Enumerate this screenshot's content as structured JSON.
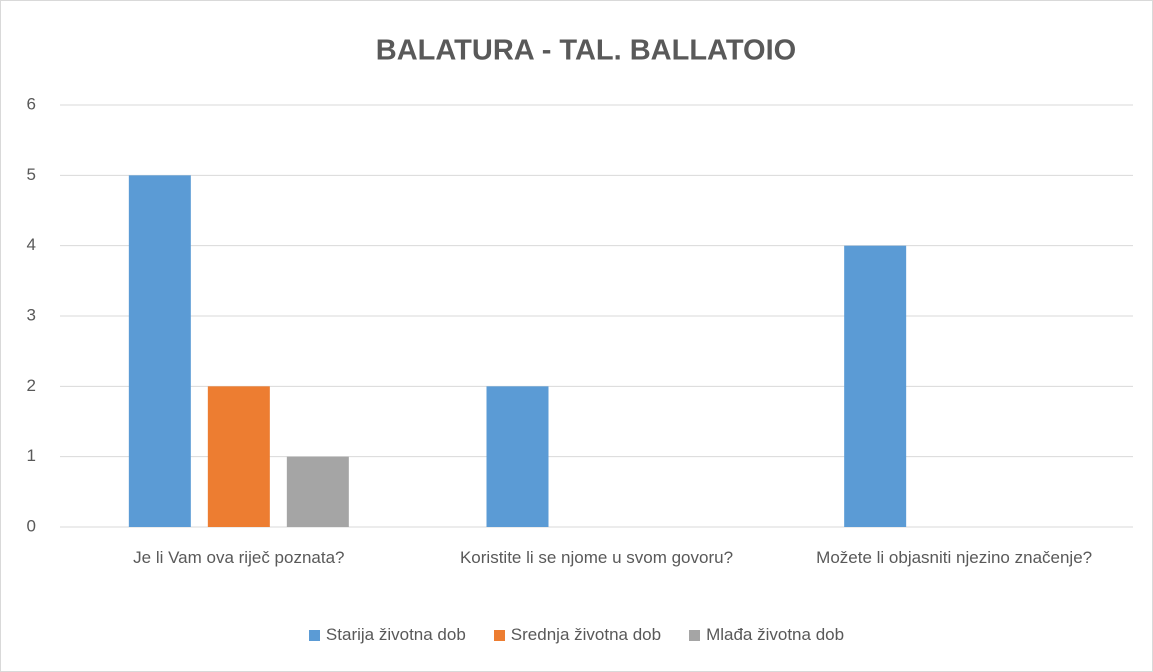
{
  "chart_data": {
    "type": "bar",
    "title": "BALATURA - TAL. BALLATOIO",
    "categories": [
      "Je li Vam ova riječ poznata?",
      "Koristite li se njome u svom govoru?",
      "Možete li objasniti njezino značenje?"
    ],
    "series": [
      {
        "name": "Starija životna dob",
        "color": "#5b9bd5",
        "values": [
          5,
          2,
          4
        ]
      },
      {
        "name": "Srednja životna dob",
        "color": "#ed7d31",
        "values": [
          2,
          0,
          0
        ]
      },
      {
        "name": "Mlađa životna dob",
        "color": "#a5a5a5",
        "values": [
          1,
          0,
          0
        ]
      }
    ],
    "ylim": [
      0,
      6
    ],
    "yticks": [
      0,
      1,
      2,
      3,
      4,
      5,
      6
    ],
    "grid": true,
    "legend": "bottom"
  }
}
